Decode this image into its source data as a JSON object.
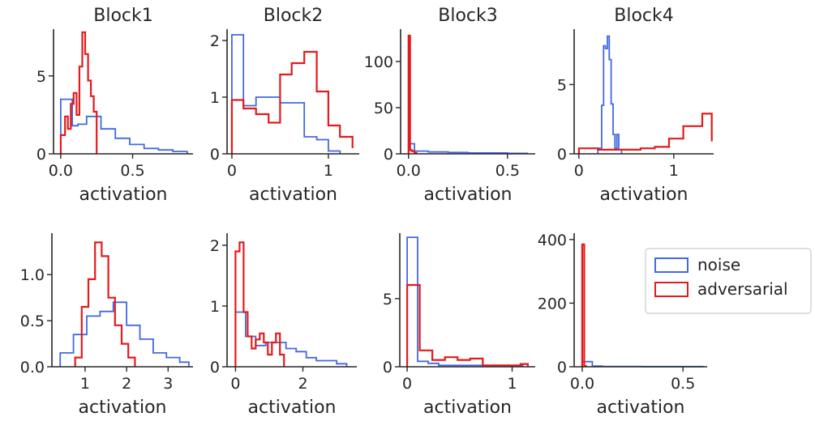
{
  "colors": {
    "noise": "#4169e1",
    "adversarial": "#e41a1c"
  },
  "legend": {
    "placement": "right",
    "entries": [
      {
        "label": "noise",
        "color": "#4169e1"
      },
      {
        "label": "adversarial",
        "color": "#e41a1c"
      }
    ]
  },
  "chart_data": [
    {
      "type": "histogram-step",
      "title": "Block1",
      "xlabel": "activation",
      "xlim": [
        -0.05,
        0.92
      ],
      "ylim": [
        0,
        8.0
      ],
      "xticks": [
        0.0,
        0.5
      ],
      "xtick_labels": [
        "0.0",
        "0.5"
      ],
      "yticks": [
        0,
        5
      ],
      "ytick_labels": [
        "0",
        "5"
      ],
      "series": [
        {
          "name": "noise",
          "edges": [
            0,
            0.08,
            0.12,
            0.18,
            0.28,
            0.38,
            0.48,
            0.58,
            0.68,
            0.78,
            0.88
          ],
          "counts": [
            3.5,
            1.8,
            1.9,
            2.4,
            1.6,
            1.0,
            0.6,
            0.35,
            0.25,
            0.15
          ]
        },
        {
          "name": "adversarial",
          "edges": [
            0,
            0.03,
            0.05,
            0.07,
            0.09,
            0.11,
            0.13,
            0.15,
            0.17,
            0.19,
            0.21,
            0.23,
            0.25
          ],
          "counts": [
            1.2,
            2.4,
            1.6,
            3.2,
            3.9,
            2.5,
            5.6,
            7.8,
            6.4,
            4.7,
            3.7,
            2.7
          ]
        }
      ]
    },
    {
      "type": "histogram-step",
      "title": "Block2",
      "xlabel": "activation",
      "xlim": [
        -0.05,
        1.32
      ],
      "ylim": [
        0,
        2.2
      ],
      "xticks": [
        0,
        1
      ],
      "xtick_labels": [
        "0",
        "1"
      ],
      "yticks": [
        0,
        1,
        2
      ],
      "ytick_labels": [
        "0",
        "1",
        "2"
      ],
      "series": [
        {
          "name": "noise",
          "edges": [
            0,
            0.12,
            0.25,
            0.5,
            0.75,
            0.88,
            1.0,
            1.12
          ],
          "counts": [
            2.1,
            0.85,
            1.0,
            0.9,
            0.3,
            0.25,
            0.05
          ]
        },
        {
          "name": "adversarial",
          "edges": [
            0,
            0.12,
            0.25,
            0.38,
            0.5,
            0.62,
            0.75,
            0.88,
            1.0,
            1.12,
            1.25
          ],
          "counts": [
            0.95,
            0.8,
            0.7,
            0.55,
            1.4,
            1.6,
            1.8,
            1.1,
            0.5,
            0.3,
            0.1
          ]
        }
      ]
    },
    {
      "type": "histogram-step",
      "title": "Block3",
      "xlabel": "activation",
      "xlim": [
        -0.04,
        0.64
      ],
      "ylim": [
        0,
        135
      ],
      "xticks": [
        0.0,
        0.5
      ],
      "xtick_labels": [
        "0.0",
        "0.5"
      ],
      "yticks": [
        0,
        50,
        100
      ],
      "ytick_labels": [
        "0",
        "50",
        "100"
      ],
      "series": [
        {
          "name": "noise",
          "edges": [
            0,
            0.03,
            0.1,
            0.2,
            0.3,
            0.4,
            0.5,
            0.6
          ],
          "counts": [
            11,
            3,
            2,
            1.5,
            1,
            1,
            0.5
          ]
        },
        {
          "name": "adversarial",
          "edges": [
            0,
            0.008,
            0.016,
            0.03,
            0.04
          ],
          "counts": [
            128,
            4,
            3,
            1
          ]
        }
      ]
    },
    {
      "type": "histogram-step",
      "title": "Block4",
      "xlabel": "activation",
      "xlim": [
        -0.05,
        1.42
      ],
      "ylim": [
        0,
        9.0
      ],
      "xticks": [
        0,
        1
      ],
      "xtick_labels": [
        "0",
        "1"
      ],
      "yticks": [
        0,
        5
      ],
      "ytick_labels": [
        "0",
        "5"
      ],
      "series": [
        {
          "name": "noise",
          "edges": [
            0.2,
            0.24,
            0.26,
            0.28,
            0.3,
            0.32,
            0.34,
            0.36,
            0.38,
            0.4,
            0.42,
            0.45
          ],
          "counts": [
            0.4,
            3.5,
            7.8,
            7.6,
            8.5,
            6.8,
            3.6,
            1.4,
            0.4,
            1.4,
            0.3
          ]
        },
        {
          "name": "adversarial",
          "edges": [
            0,
            0.2,
            0.35,
            0.5,
            0.65,
            0.8,
            0.95,
            1.1,
            1.3,
            1.4
          ],
          "counts": [
            0.4,
            0.3,
            0.3,
            0.3,
            0.4,
            0.5,
            1.1,
            2.0,
            2.9,
            0.9
          ]
        }
      ]
    },
    {
      "type": "histogram-step",
      "title": "",
      "xlabel": "activation",
      "xlim": [
        0.2,
        3.6
      ],
      "ylim": [
        0,
        1.45
      ],
      "xticks": [
        1,
        2,
        3
      ],
      "xtick_labels": [
        "1",
        "2",
        "3"
      ],
      "yticks": [
        0.0,
        0.5,
        1.0
      ],
      "ytick_labels": [
        "0.0",
        "0.5",
        "1.0"
      ],
      "series": [
        {
          "name": "noise",
          "edges": [
            0.4,
            0.72,
            1.04,
            1.36,
            1.68,
            2.0,
            2.32,
            2.64,
            2.96,
            3.28,
            3.5
          ],
          "counts": [
            0.15,
            0.35,
            0.55,
            0.6,
            0.7,
            0.45,
            0.3,
            0.15,
            0.1,
            0.05
          ]
        },
        {
          "name": "adversarial",
          "edges": [
            0.76,
            0.92,
            1.08,
            1.24,
            1.4,
            1.56,
            1.72,
            1.88,
            2.04,
            2.2
          ],
          "counts": [
            0.1,
            0.65,
            0.95,
            1.35,
            1.2,
            0.75,
            0.45,
            0.25,
            0.1
          ]
        }
      ]
    },
    {
      "type": "histogram-step",
      "title": "",
      "xlabel": "activation",
      "xlim": [
        -0.25,
        3.6
      ],
      "ylim": [
        0,
        2.2
      ],
      "xticks": [
        0,
        2
      ],
      "xtick_labels": [
        "0",
        "2"
      ],
      "yticks": [
        0,
        1,
        2
      ],
      "ytick_labels": [
        "0",
        "1",
        "2"
      ],
      "series": [
        {
          "name": "noise",
          "edges": [
            0,
            0.3,
            0.6,
            0.9,
            1.2,
            1.5,
            1.8,
            2.1,
            2.4,
            2.7,
            3.0,
            3.3
          ],
          "counts": [
            0.9,
            0.5,
            0.35,
            0.4,
            0.4,
            0.3,
            0.25,
            0.15,
            0.1,
            0.1,
            0.05
          ]
        },
        {
          "name": "adversarial",
          "edges": [
            0,
            0.12,
            0.24,
            0.36,
            0.48,
            0.6,
            0.72,
            0.84,
            0.96,
            1.08,
            1.2,
            1.32,
            1.44
          ],
          "counts": [
            1.9,
            2.05,
            0.9,
            0.5,
            0.3,
            0.45,
            0.55,
            0.4,
            0.2,
            0.4,
            0.55,
            0.2
          ]
        }
      ]
    },
    {
      "type": "histogram-step",
      "title": "",
      "xlabel": "activation",
      "xlim": [
        -0.07,
        1.22
      ],
      "ylim": [
        0,
        9.8
      ],
      "xticks": [
        0,
        1
      ],
      "xtick_labels": [
        "0",
        "1"
      ],
      "yticks": [
        0,
        5
      ],
      "ytick_labels": [
        "0",
        "5"
      ],
      "series": [
        {
          "name": "noise",
          "edges": [
            0,
            0.1,
            0.2,
            0.3,
            0.5,
            0.7,
            0.9,
            1.1
          ],
          "counts": [
            9.5,
            0.4,
            0.25,
            0.1,
            0.1,
            0.1,
            0.1
          ]
        },
        {
          "name": "adversarial",
          "edges": [
            0,
            0.12,
            0.24,
            0.36,
            0.48,
            0.6,
            0.72,
            0.84,
            0.96,
            1.08,
            1.15
          ],
          "counts": [
            6.0,
            1.2,
            0.5,
            0.7,
            0.5,
            0.6,
            0.1,
            0.1,
            0.1,
            0.2
          ]
        }
      ]
    },
    {
      "type": "histogram-step",
      "title": "",
      "xlabel": "activation",
      "xlim": [
        -0.04,
        0.62
      ],
      "ylim": [
        0,
        420
      ],
      "xticks": [
        0.0,
        0.5
      ],
      "xtick_labels": [
        "0.0",
        "0.5"
      ],
      "yticks": [
        0,
        200,
        400
      ],
      "ytick_labels": [
        "0",
        "200",
        "400"
      ],
      "series": [
        {
          "name": "noise",
          "edges": [
            0,
            0.05,
            0.1,
            0.2,
            0.3,
            0.4,
            0.5,
            0.6
          ],
          "counts": [
            16,
            2,
            1,
            1,
            0.5,
            0.5,
            0.5
          ]
        },
        {
          "name": "adversarial",
          "edges": [
            0,
            0.01,
            0.02
          ],
          "counts": [
            385,
            2
          ]
        }
      ]
    }
  ]
}
